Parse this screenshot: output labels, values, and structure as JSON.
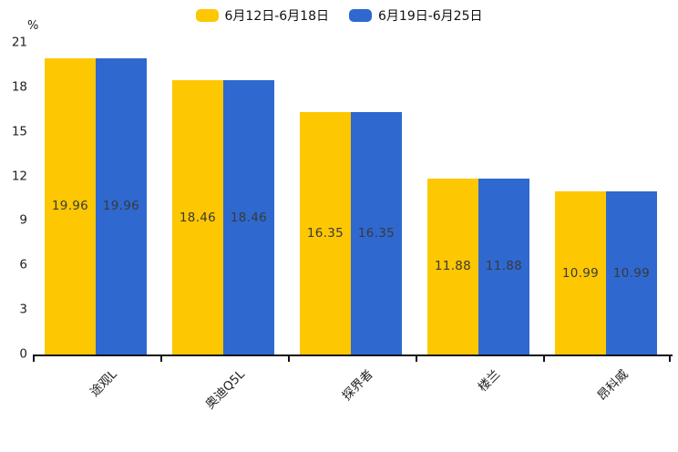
{
  "chart_data": {
    "type": "bar",
    "title": "",
    "unit_label": "%",
    "categories": [
      "途观L",
      "奥迪Q5L",
      "探界者",
      "楼兰",
      "昂科威"
    ],
    "series": [
      {
        "name": "6月12日-6月18日",
        "color": "#FDC702",
        "values": [
          19.96,
          18.46,
          16.35,
          11.88,
          10.99
        ]
      },
      {
        "name": "6月19日-6月25日",
        "color": "#2F68CF",
        "values": [
          19.96,
          18.46,
          16.35,
          11.88,
          10.99
        ]
      }
    ],
    "value_labels": [
      [
        "19.96",
        "18.46",
        "16.35",
        "11.88",
        "10.99"
      ],
      [
        "19.96",
        "18.46",
        "16.35",
        "11.88",
        "10.99"
      ]
    ],
    "ylim": [
      0,
      21
    ],
    "yticks": [
      0,
      3,
      6,
      9,
      12,
      15,
      18,
      21
    ],
    "legend_position": "top",
    "grid": false,
    "value_label_color": "#3a3a3a",
    "axis_color": "#111111",
    "tick_label_color": "#222222"
  }
}
